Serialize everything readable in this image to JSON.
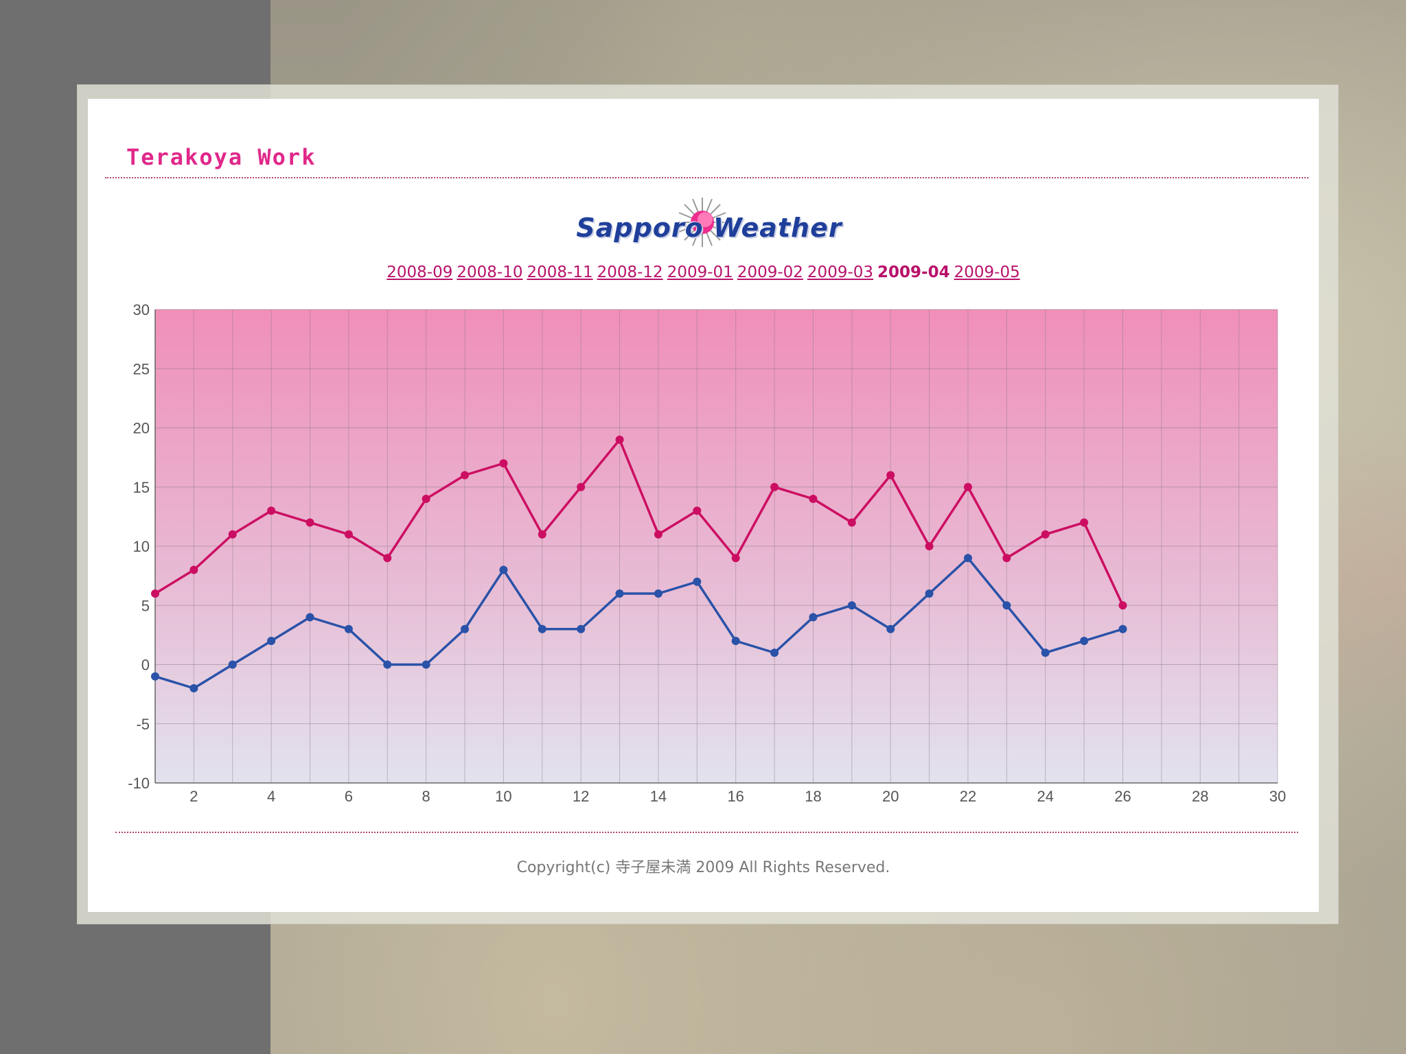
{
  "site": {
    "title": "Terakoya Work"
  },
  "logo": {
    "text": "Sapporo Weather"
  },
  "months": [
    {
      "label": "2008-09",
      "current": false
    },
    {
      "label": "2008-10",
      "current": false
    },
    {
      "label": "2008-11",
      "current": false
    },
    {
      "label": "2008-12",
      "current": false
    },
    {
      "label": "2009-01",
      "current": false
    },
    {
      "label": "2009-02",
      "current": false
    },
    {
      "label": "2009-03",
      "current": false
    },
    {
      "label": "2009-04",
      "current": true
    },
    {
      "label": "2009-05",
      "current": false
    }
  ],
  "colors": {
    "high_series": "#cc0e62",
    "low_series": "#2a52a8",
    "plot_top": "#f08fb8",
    "plot_bottom": "#e2e2ee",
    "accent": "#e0288a"
  },
  "chart_data": {
    "type": "line",
    "x": [
      1,
      2,
      3,
      4,
      5,
      6,
      7,
      8,
      9,
      10,
      11,
      12,
      13,
      14,
      15,
      16,
      17,
      18,
      19,
      20,
      21,
      22,
      23,
      24,
      25,
      26
    ],
    "series": [
      {
        "values": [
          6,
          8,
          11,
          13,
          12,
          11,
          9,
          14,
          16,
          17,
          11,
          15,
          19,
          11,
          13,
          9,
          15,
          14,
          12,
          16,
          10,
          15,
          9,
          11,
          12,
          5
        ]
      },
      {
        "values": [
          -1,
          -2,
          0,
          2,
          4,
          3,
          0,
          0,
          3,
          8,
          3,
          3,
          6,
          6,
          7,
          2,
          1,
          4,
          5,
          3,
          6,
          9,
          5,
          1,
          2,
          3
        ]
      }
    ],
    "xlim": [
      1,
      30
    ],
    "ylim": [
      -10,
      30
    ],
    "x_ticks": [
      2,
      4,
      6,
      8,
      10,
      12,
      14,
      16,
      18,
      20,
      22,
      24,
      26,
      28,
      30
    ],
    "y_ticks": [
      30,
      25,
      20,
      15,
      10,
      5,
      0,
      -5,
      -10
    ],
    "grid": true,
    "legend": "none"
  },
  "footer": {
    "copyright": "Copyright(c) 寺子屋未満 2009 All Rights Reserved."
  }
}
